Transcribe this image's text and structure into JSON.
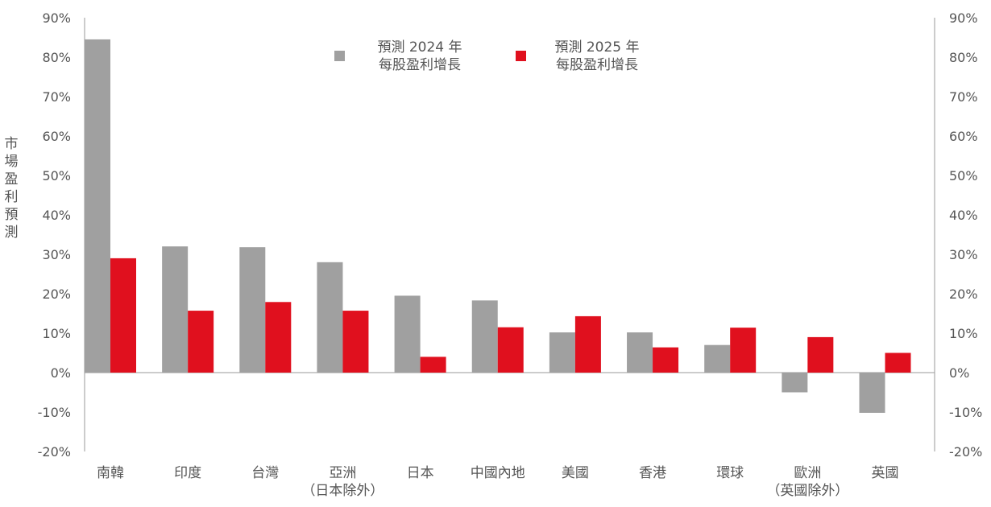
{
  "chart_data": {
    "type": "bar",
    "ylabel": "市場盈利預測",
    "ylim": [
      -20,
      90
    ],
    "y_ticks": [
      "90%",
      "80%",
      "70%",
      "60%",
      "50%",
      "40%",
      "30%",
      "20%",
      "10%",
      "0%",
      "-10%",
      "-20%"
    ],
    "y_tick_values": [
      90,
      80,
      70,
      60,
      50,
      40,
      30,
      20,
      10,
      0,
      -10,
      -20
    ],
    "categories": [
      [
        "南韓"
      ],
      [
        "印度"
      ],
      [
        "台灣"
      ],
      [
        "亞洲",
        "（日本除外）"
      ],
      [
        "日本"
      ],
      [
        "中國內地"
      ],
      [
        "美國"
      ],
      [
        "香港"
      ],
      [
        "環球"
      ],
      [
        "歐洲",
        "（英國除外）"
      ],
      [
        "英國"
      ]
    ],
    "series": [
      {
        "name": [
          "預測 2024 年",
          "每股盈利增長"
        ],
        "color": "#a0a0a0",
        "values": [
          84.5,
          32,
          31.8,
          28,
          19.5,
          18.3,
          10.2,
          10.2,
          7,
          -5,
          -10.2
        ]
      },
      {
        "name": [
          "預測 2025 年",
          "每股盈利增長"
        ],
        "color": "#e0101e",
        "values": [
          29,
          15.7,
          17.9,
          15.7,
          4,
          11.5,
          14.3,
          6.4,
          11.4,
          9,
          5
        ]
      }
    ],
    "legend": "top-center",
    "grid": false
  }
}
